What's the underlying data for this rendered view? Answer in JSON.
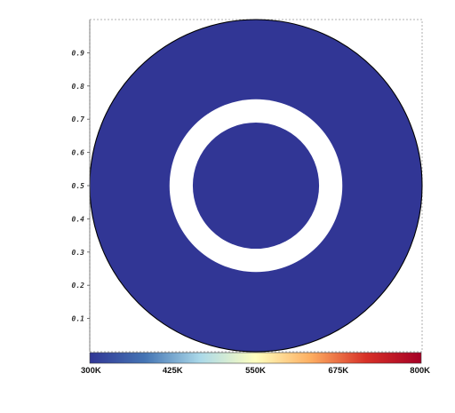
{
  "chart_data": {
    "type": "heatmap",
    "title": "",
    "xlabel": "",
    "ylabel": "",
    "xlim": [
      0,
      1
    ],
    "ylim": [
      0,
      1
    ],
    "yticks": [
      "0.1",
      "0.2",
      "0.3",
      "0.4",
      "0.5",
      "0.6",
      "0.7",
      "0.8",
      "0.9"
    ],
    "yticks_values": [
      0.1,
      0.2,
      0.3,
      0.4,
      0.5,
      0.6,
      0.7,
      0.8,
      0.9
    ],
    "field": {
      "value": 300,
      "unit": "K",
      "domain": "disk",
      "center": [
        0.5,
        0.5
      ],
      "outer_radius": 0.5,
      "excluded_annulus": {
        "inner_radius": 0.19,
        "outer_radius": 0.26
      }
    },
    "colorbar": {
      "min": 300,
      "max": 800,
      "ticks": [
        "300K",
        "425K",
        "550K",
        "675K",
        "800K"
      ],
      "tick_values": [
        300,
        425,
        550,
        675,
        800
      ],
      "colors": [
        "#313695",
        "#4575b4",
        "#abd9e9",
        "#ffffbf",
        "#fdae61",
        "#d73027",
        "#a50026"
      ]
    },
    "colors": {
      "field_color": "#313695",
      "outline": "#000000"
    }
  }
}
